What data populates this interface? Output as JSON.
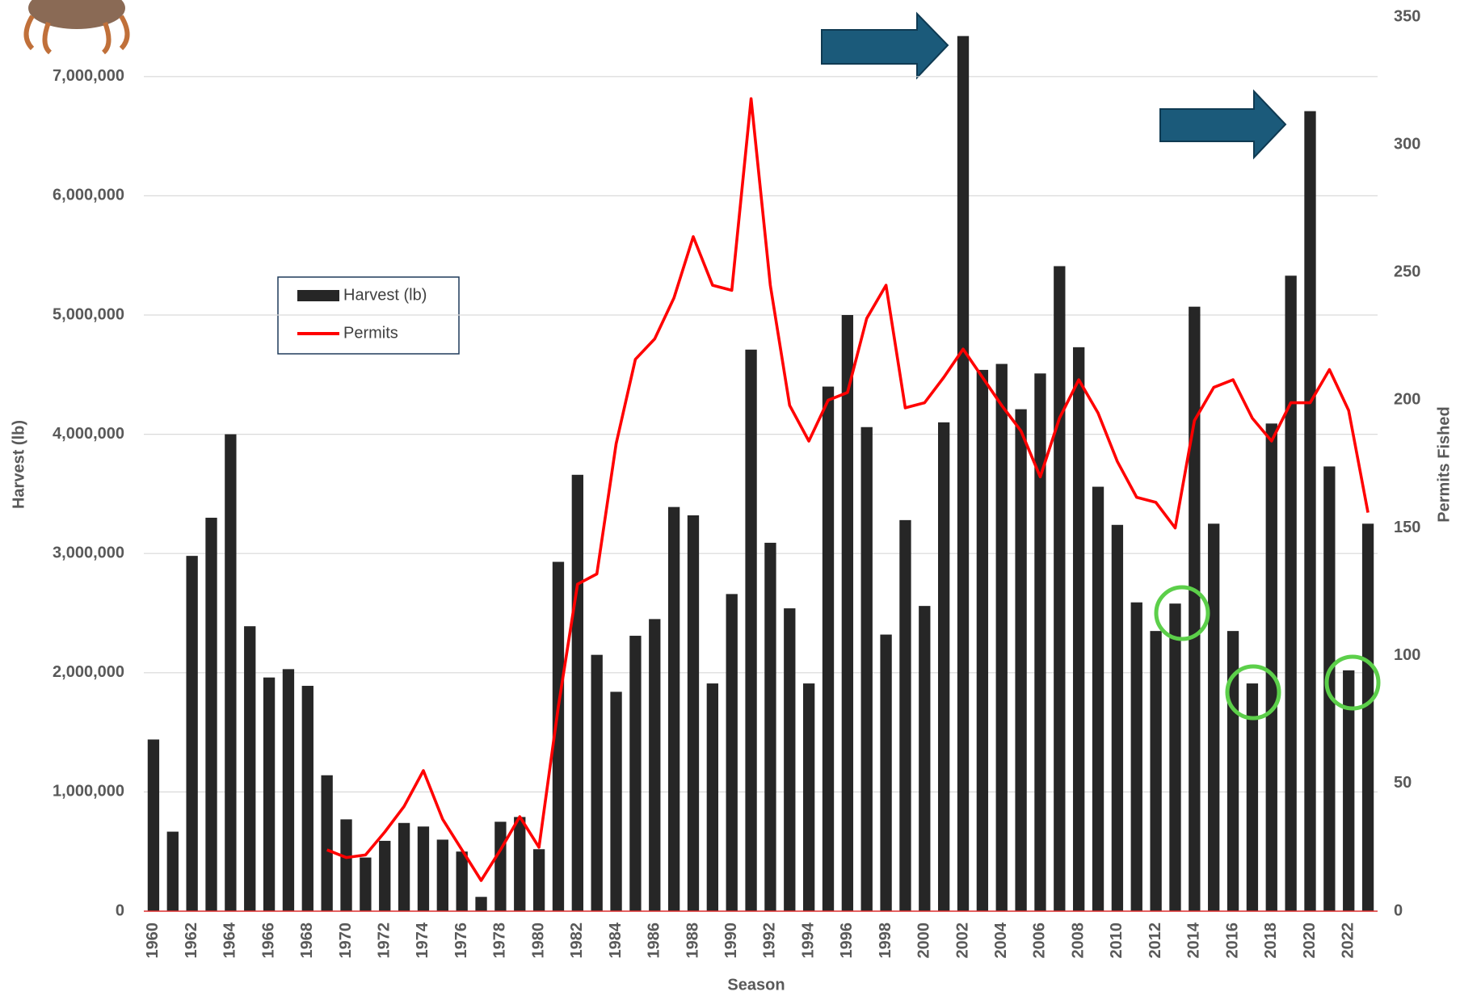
{
  "chart_data": {
    "type": "bar",
    "x_label": "Season",
    "y_label": "Harvest (lb)",
    "y2_label": "Permits Fished",
    "categories": [
      "1960",
      null,
      "1962",
      null,
      "1964",
      null,
      "1966",
      null,
      "1968",
      null,
      "1970",
      null,
      "1972",
      null,
      "1974",
      null,
      "1976",
      null,
      "1978",
      null,
      "1980",
      null,
      "1982",
      null,
      "1984",
      null,
      "1986",
      null,
      "1988",
      null,
      "1990",
      null,
      "1992",
      null,
      "1994",
      null,
      "1996",
      null,
      "1998",
      null,
      "2000",
      null,
      "2002",
      null,
      "2004",
      null,
      "2006",
      null,
      "2008",
      null,
      "2010",
      null,
      "2012",
      null,
      "2014",
      null,
      "2016",
      null,
      "2018",
      null,
      "2020",
      null,
      "2022",
      null
    ],
    "series": [
      {
        "name": "Harvest (lb)",
        "type": "bar",
        "color": "#262626",
        "values": [
          1440000,
          667000,
          2980000,
          3300000,
          4000000,
          2390000,
          1960000,
          2030000,
          1890000,
          1140000,
          770000,
          450000,
          590000,
          740000,
          710000,
          600000,
          500000,
          120000,
          750000,
          790000,
          520000,
          2930000,
          3660000,
          2150000,
          1840000,
          2310000,
          2450000,
          3390000,
          3320000,
          1910000,
          2660000,
          4710000,
          3090000,
          2540000,
          1910000,
          4400000,
          5000000,
          4060000,
          2320000,
          3280000,
          2560000,
          4100000,
          7340000,
          4540000,
          4590000,
          4210000,
          4510000,
          5410000,
          4730000,
          3560000,
          3240000,
          2590000,
          2350000,
          2580000,
          5070000,
          3250000,
          2350000,
          1910000,
          4090000,
          5330000,
          6710000,
          3730000,
          2020000,
          3250000
        ]
      },
      {
        "name": "Permits",
        "type": "line",
        "axis": "y2",
        "color": "#ff0000",
        "values": [
          null,
          null,
          null,
          null,
          null,
          null,
          null,
          null,
          null,
          24,
          21,
          22,
          31,
          41,
          55,
          36,
          24,
          12,
          24,
          37,
          25,
          80,
          128,
          132,
          183,
          216,
          224,
          240,
          264,
          245,
          243,
          318,
          245,
          198,
          184,
          200,
          203,
          232,
          245,
          197,
          199,
          209,
          220,
          209,
          198,
          188,
          170,
          193,
          208,
          195,
          176,
          162,
          160,
          150,
          192,
          205,
          208,
          193,
          184,
          199,
          199,
          212,
          196,
          156
        ]
      }
    ],
    "ylim": [
      0,
      7500000
    ],
    "yticks": [
      0,
      {
        "value": 1000000,
        "label": "1,000,000"
      },
      {
        "value": 2000000,
        "label": "2,000,000"
      },
      {
        "value": 3000000,
        "label": "3,000,000"
      },
      {
        "value": 4000000,
        "label": "4,000,000"
      },
      {
        "value": 5000000,
        "label": "5,000,000"
      },
      {
        "value": 6000000,
        "label": "6,000,000"
      },
      {
        "value": 7000000,
        "label": "7,000,000"
      }
    ],
    "y2lim": [
      0,
      350
    ],
    "y2ticks": [
      0,
      50,
      100,
      150,
      200,
      250,
      300,
      350
    ],
    "grid": true
  }
}
